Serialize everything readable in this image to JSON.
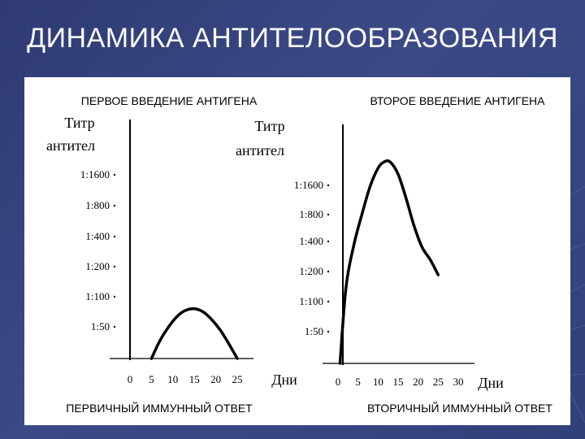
{
  "slide": {
    "title": "ДИНАМИКА  АНТИТЕЛООБРАЗОВАНИЯ"
  },
  "colors": {
    "background": "#35427c",
    "panel": "#ffffff",
    "ink": "#000000"
  },
  "chart_data": [
    {
      "type": "line",
      "title": "ПЕРВОЕ  ВВЕДЕНИЕ АНТИГЕНА",
      "subtitle": "ПЕРВИЧНЫЙ ИММУННЫЙ ОТВЕТ",
      "ylabel_line1": "Титр",
      "ylabel_line2": "антител",
      "xlabel": "Дни",
      "x_ticks": [
        "0",
        "5",
        "10",
        "15",
        "20",
        "25"
      ],
      "y_ticks": [
        "1:50",
        "1:100",
        "1:200",
        "1:400",
        "1:800",
        "1:1600"
      ],
      "xlim": [
        0,
        25
      ],
      "ylim": [
        0,
        6.5
      ],
      "grid": false,
      "series": [
        {
          "x": [
            5,
            7,
            9,
            11,
            13,
            15,
            17,
            19,
            21,
            23,
            25
          ],
          "y": [
            0,
            0.6,
            1.05,
            1.4,
            1.6,
            1.65,
            1.55,
            1.3,
            0.95,
            0.5,
            0
          ]
        }
      ]
    },
    {
      "type": "line",
      "title": "ВТОРОЕ ВВЕДЕНИЕ  АНТИГЕНА",
      "subtitle": "ВТОРИЧНЫЙ ИММУННЫЙ ОТВЕТ",
      "ylabel_line1": "Титр",
      "ylabel_line2": "антител",
      "xlabel": "Дни",
      "x_ticks": [
        "0",
        "5",
        "10",
        "15",
        "20",
        "25",
        "30"
      ],
      "y_ticks": [
        "1:50",
        "1:100",
        "1:200",
        "1:400",
        "1:800",
        "1:1600"
      ],
      "xlim": [
        0,
        30
      ],
      "ylim": [
        0,
        6.5
      ],
      "grid": false,
      "series": [
        {
          "x": [
            0.5,
            2,
            4,
            6,
            8,
            10,
            11.5,
            13,
            15,
            17,
            19,
            21,
            23,
            25
          ],
          "y": [
            0,
            2.5,
            3.9,
            4.9,
            5.8,
            6.4,
            6.6,
            6.6,
            6.2,
            5.4,
            4.5,
            3.8,
            3.4,
            2.9
          ]
        }
      ]
    }
  ]
}
